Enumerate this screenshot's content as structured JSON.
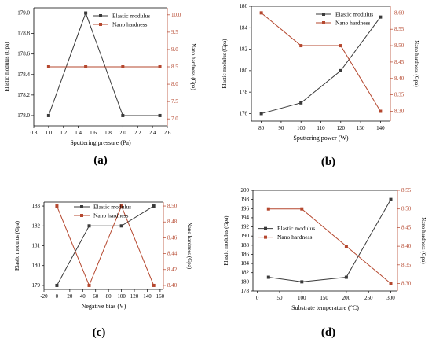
{
  "colors": {
    "elastic": "#3a3a3a",
    "nano": "#b5472e",
    "axis": "#000000"
  },
  "legend_labels": {
    "elastic": "Elastic modulus",
    "nano": "Nano hardness"
  },
  "chart_data": [
    {
      "id": "a",
      "panel_label": "(a)",
      "type": "line",
      "xlabel": "Sputtering pressure (Pa)",
      "ylabel": "Elastic modulus (Gpa)",
      "y2label": "Nano hardness (Gpa)",
      "xlim": [
        0.8,
        2.6
      ],
      "xticks": [
        0.8,
        1.0,
        1.2,
        1.4,
        1.6,
        1.8,
        2.0,
        2.2,
        2.4,
        2.6
      ],
      "xtick_labels": [
        "0.8",
        "1.0",
        "1.2",
        "1.4",
        "1.6",
        "1.8",
        "2.0",
        "2.2",
        "2.4",
        "2.6"
      ],
      "ylim": [
        177.9,
        179.05
      ],
      "yticks": [
        178.0,
        178.2,
        178.4,
        178.6,
        178.8,
        179.0
      ],
      "ytick_labels": [
        "178.0",
        "178.2",
        "178.4",
        "178.6",
        "178.8",
        "179.0"
      ],
      "y2lim": [
        6.8,
        10.2
      ],
      "y2ticks": [
        7.0,
        7.5,
        8.0,
        8.5,
        9.0,
        9.5,
        10.0
      ],
      "y2tick_labels": [
        "7.0",
        "7.5",
        "8.0",
        "8.5",
        "9.0",
        "9.5",
        "10.0"
      ],
      "legend_position": "top-right",
      "series": [
        {
          "name": "Elastic modulus",
          "axis": "left",
          "x": [
            1.0,
            1.5,
            2.0,
            2.5
          ],
          "y": [
            178.0,
            179.0,
            178.0,
            178.0
          ]
        },
        {
          "name": "Nano hardness",
          "axis": "right",
          "x": [
            1.0,
            1.5,
            2.0,
            2.5
          ],
          "y": [
            8.5,
            8.5,
            8.5,
            8.5
          ]
        }
      ]
    },
    {
      "id": "b",
      "panel_label": "(b)",
      "type": "line",
      "xlabel": "Sputtering power (W)",
      "ylabel": "Elastic modulus (Gpa)",
      "y2label": "Nano hardness (Gpa)",
      "xlim": [
        75,
        145
      ],
      "xticks": [
        80,
        90,
        100,
        110,
        120,
        130,
        140
      ],
      "xtick_labels": [
        "80",
        "90",
        "100",
        "110",
        "120",
        "130",
        "140"
      ],
      "ylim": [
        175.3,
        186
      ],
      "yticks": [
        176,
        178,
        180,
        182,
        184,
        186
      ],
      "ytick_labels": [
        "176",
        "178",
        "180",
        "182",
        "184",
        "186"
      ],
      "y2lim": [
        8.27,
        8.62
      ],
      "y2ticks": [
        8.3,
        8.35,
        8.4,
        8.45,
        8.5,
        8.55,
        8.6
      ],
      "y2tick_labels": [
        "8.30",
        "8.35",
        "8.40",
        "8.45",
        "8.50",
        "8.55",
        "8.60"
      ],
      "legend_position": "top-right",
      "series": [
        {
          "name": "Elastic modulus",
          "axis": "left",
          "x": [
            80,
            100,
            120,
            140
          ],
          "y": [
            176,
            177,
            180,
            185
          ]
        },
        {
          "name": "Nano hardness",
          "axis": "right",
          "x": [
            80,
            100,
            120,
            140
          ],
          "y": [
            8.6,
            8.5,
            8.5,
            8.3
          ]
        }
      ]
    },
    {
      "id": "c",
      "panel_label": "(c)",
      "type": "line",
      "xlabel": "Negative bias (V)",
      "ylabel": "Elastic modulus (Gpa)",
      "y2label": "Nano hardness (Gpa)",
      "xlim": [
        -20,
        165
      ],
      "xticks": [
        -20,
        0,
        20,
        40,
        60,
        80,
        100,
        120,
        140,
        160
      ],
      "xtick_labels": [
        "-20",
        "0",
        "20",
        "40",
        "60",
        "80",
        "100",
        "120",
        "140",
        "160"
      ],
      "ylim": [
        178.8,
        183.2
      ],
      "yticks": [
        179,
        180,
        181,
        182,
        183
      ],
      "ytick_labels": [
        "179",
        "180",
        "181",
        "182",
        "183"
      ],
      "y2lim": [
        8.395,
        8.505
      ],
      "y2ticks": [
        8.4,
        8.42,
        8.44,
        8.46,
        8.48,
        8.5
      ],
      "y2tick_labels": [
        "8.40",
        "8.42",
        "8.44",
        "8.46",
        "8.48",
        "8.50"
      ],
      "legend_position": "top-center",
      "series": [
        {
          "name": "Elastic modulus",
          "axis": "left",
          "x": [
            0,
            50,
            100,
            150
          ],
          "y": [
            179,
            182,
            182,
            183
          ]
        },
        {
          "name": "Nano hardness",
          "axis": "right",
          "x": [
            0,
            50,
            100,
            150
          ],
          "y": [
            8.5,
            8.4,
            8.5,
            8.4
          ]
        }
      ]
    },
    {
      "id": "d",
      "panel_label": "(d)",
      "type": "line",
      "xlabel": "Substrate temperature (°C)",
      "ylabel": "Elastic modulus (Gpa)",
      "y2label": "Nano hardness (Gpa)",
      "xlim": [
        -10,
        315
      ],
      "xticks": [
        0,
        50,
        100,
        150,
        200,
        250,
        300
      ],
      "xtick_labels": [
        "0",
        "50",
        "100",
        "150",
        "200",
        "250",
        "300"
      ],
      "ylim": [
        178,
        200
      ],
      "yticks": [
        178,
        180,
        182,
        184,
        186,
        188,
        190,
        192,
        194,
        196,
        198,
        200
      ],
      "ytick_labels": [
        "178",
        "180",
        "182",
        "184",
        "186",
        "188",
        "190",
        "192",
        "194",
        "196",
        "198",
        "200"
      ],
      "y2lim": [
        8.28,
        8.55
      ],
      "y2ticks": [
        8.3,
        8.35,
        8.4,
        8.45,
        8.5,
        8.55
      ],
      "y2tick_labels": [
        "8.30",
        "8.35",
        "8.40",
        "8.45",
        "8.50",
        "8.55"
      ],
      "legend_position": "center-left",
      "series": [
        {
          "name": "Elastic modulus",
          "axis": "left",
          "x": [
            25,
            100,
            200,
            300
          ],
          "y": [
            181,
            180,
            181,
            198
          ]
        },
        {
          "name": "Nano hardness",
          "axis": "right",
          "x": [
            25,
            100,
            200,
            300
          ],
          "y": [
            8.5,
            8.5,
            8.4,
            8.3
          ]
        }
      ]
    }
  ]
}
